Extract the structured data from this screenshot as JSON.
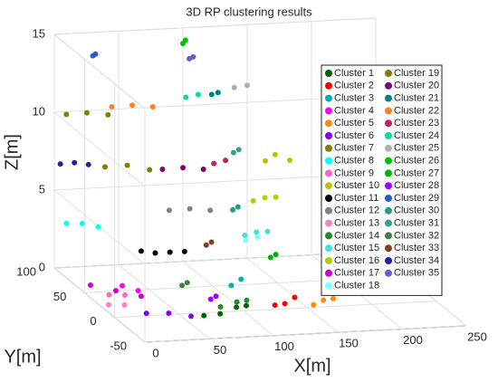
{
  "chart_data": {
    "type": "scatter3d",
    "title": "3D RP clustering results",
    "xlabel": "X[m]",
    "ylabel": "Y[m]",
    "zlabel": "Z[m]",
    "xlim": [
      0,
      250
    ],
    "ylim": [
      -50,
      100
    ],
    "zlim": [
      0,
      15
    ],
    "xticks": [
      0,
      50,
      100,
      150,
      200,
      250
    ],
    "yticks": [
      -50,
      0,
      50,
      100
    ],
    "zticks": [
      0,
      5,
      10,
      15
    ],
    "grid": true,
    "legend": "upper right",
    "series": [
      {
        "name": "Cluster 1",
        "color": "#006400",
        "points": [
          [
            60,
            -20,
            0.5
          ],
          [
            75,
            -15,
            0.4
          ],
          [
            90,
            -10,
            0.6
          ],
          [
            100,
            -5,
            0.5
          ]
        ]
      },
      {
        "name": "Cluster 2",
        "color": "#ff0000",
        "points": [
          [
            120,
            -10,
            0.6
          ],
          [
            130,
            -5,
            0.5
          ],
          [
            140,
            0,
            0.7
          ]
        ]
      },
      {
        "name": "Cluster 3",
        "color": "#00b0b0",
        "points": [
          [
            100,
            20,
            1.0
          ],
          [
            110,
            25,
            1.2
          ]
        ]
      },
      {
        "name": "Cluster 4",
        "color": "#ff00ff",
        "points": [
          [
            20,
            30,
            1.0
          ],
          [
            30,
            25,
            0.8
          ]
        ]
      },
      {
        "name": "Cluster 5",
        "color": "#ff8c00",
        "points": [
          [
            150,
            -10,
            0.5
          ],
          [
            160,
            -5,
            0.6
          ],
          [
            170,
            0,
            0.5
          ]
        ]
      },
      {
        "name": "Cluster 6",
        "color": "#8000ff",
        "points": [
          [
            20,
            -10,
            0.5
          ],
          [
            35,
            -15,
            0.6
          ],
          [
            50,
            -20,
            0.5
          ]
        ]
      },
      {
        "name": "Cluster 7",
        "color": "#808000",
        "points": [
          [
            30,
            80,
            7.0
          ],
          [
            45,
            75,
            7.2
          ],
          [
            60,
            70,
            7.0
          ]
        ]
      },
      {
        "name": "Cluster 8",
        "color": "#00ffff",
        "points": [
          [
            0,
            80,
            3.5
          ],
          [
            10,
            75,
            3.6
          ],
          [
            20,
            70,
            3.5
          ]
        ]
      },
      {
        "name": "Cluster 9",
        "color": "#ff66cc",
        "points": [
          [
            5,
            20,
            0.8
          ],
          [
            15,
            15,
            0.9
          ]
        ]
      },
      {
        "name": "Cluster 10",
        "color": "#c0c000",
        "points": [
          [
            150,
            70,
            7.2
          ],
          [
            160,
            75,
            7.4
          ],
          [
            170,
            72,
            7.1
          ]
        ]
      },
      {
        "name": "Cluster 11",
        "color": "#000000",
        "points": [
          [
            30,
            20,
            3.5
          ],
          [
            40,
            18,
            3.4
          ],
          [
            50,
            15,
            3.5
          ],
          [
            60,
            12,
            3.6
          ]
        ]
      },
      {
        "name": "Cluster 12",
        "color": "#808080",
        "points": [
          [
            80,
            80,
            4.0
          ],
          [
            95,
            78,
            4.1
          ],
          [
            110,
            76,
            4.0
          ]
        ]
      },
      {
        "name": "Cluster 13",
        "color": "#ff80c0",
        "points": [
          [
            0,
            10,
            0.5
          ],
          [
            10,
            5,
            0.6
          ]
        ]
      },
      {
        "name": "Cluster 14",
        "color": "#228b22",
        "points": [
          [
            80,
            -5,
            0.5
          ],
          [
            95,
            0,
            0.6
          ],
          [
            105,
            5,
            0.5
          ]
        ]
      },
      {
        "name": "Cluster 15",
        "color": "#40e0e0",
        "points": [
          [
            120,
            40,
            3.5
          ],
          [
            130,
            42,
            3.6
          ],
          [
            140,
            45,
            3.5
          ]
        ]
      },
      {
        "name": "Cluster 16",
        "color": "#b0d000",
        "points": [
          [
            150,
            90,
            4.0
          ],
          [
            160,
            92,
            4.1
          ],
          [
            170,
            95,
            4.0
          ]
        ]
      },
      {
        "name": "Cluster 17",
        "color": "#d000d0",
        "points": [
          [
            0,
            40,
            0.8
          ],
          [
            15,
            30,
            0.7
          ],
          [
            30,
            20,
            0.6
          ]
        ]
      },
      {
        "name": "Cluster 18",
        "color": "#80ffff",
        "points": [
          [
            130,
            60,
            2.5
          ],
          [
            140,
            62,
            2.6
          ]
        ]
      },
      {
        "name": "Cluster 19",
        "color": "#808000",
        "points": [
          [
            0,
            80,
            10.5
          ],
          [
            15,
            78,
            10.6
          ],
          [
            30,
            75,
            10.5
          ]
        ]
      },
      {
        "name": "Cluster 20",
        "color": "#800080",
        "points": [
          [
            70,
            70,
            7.0
          ],
          [
            85,
            68,
            7.1
          ],
          [
            100,
            66,
            7.0
          ]
        ]
      },
      {
        "name": "Cluster 21",
        "color": "#008080",
        "points": [
          [
            120,
            95,
            10.8
          ],
          [
            125,
            95,
            10.9
          ]
        ]
      },
      {
        "name": "Cluster 22",
        "color": "#ff8020",
        "points": [
          [
            40,
            90,
            10.5
          ],
          [
            55,
            88,
            10.6
          ],
          [
            70,
            86,
            10.5
          ]
        ]
      },
      {
        "name": "Cluster 23",
        "color": "#c02060",
        "points": [
          [
            110,
            70,
            7.2
          ],
          [
            120,
            72,
            7.3
          ]
        ]
      },
      {
        "name": "Cluster 24",
        "color": "#00e0a0",
        "points": [
          [
            100,
            95,
            10.7
          ],
          [
            110,
            96,
            10.8
          ]
        ]
      },
      {
        "name": "Cluster 25",
        "color": "#b0b0b0",
        "points": [
          [
            140,
            100,
            11.0
          ],
          [
            150,
            100,
            11.1
          ]
        ]
      },
      {
        "name": "Cluster 26",
        "color": "#00c000",
        "points": [
          [
            100,
            100,
            14.0
          ],
          [
            102,
            100,
            14.2
          ]
        ]
      },
      {
        "name": "Cluster 27",
        "color": "#00b000",
        "points": [
          [
            140,
            40,
            2.0
          ],
          [
            145,
            42,
            2.1
          ]
        ]
      },
      {
        "name": "Cluster 28",
        "color": "#a000ff",
        "points": [
          [
            70,
            -10,
            1.2
          ],
          [
            75,
            -8,
            1.3
          ]
        ]
      },
      {
        "name": "Cluster 29",
        "color": "#2060c0",
        "points": [
          [
            30,
            100,
            13.5
          ],
          [
            32,
            100,
            13.6
          ]
        ]
      },
      {
        "name": "Cluster 30",
        "color": "#20a080",
        "points": [
          [
            120,
            60,
            4.5
          ],
          [
            125,
            62,
            4.6
          ]
        ]
      },
      {
        "name": "Cluster 31",
        "color": "#30a090",
        "points": [
          [
            130,
            80,
            7.5
          ],
          [
            135,
            82,
            7.6
          ]
        ]
      },
      {
        "name": "Cluster 32",
        "color": "#408040",
        "points": [
          [
            50,
            -5,
            2.0
          ],
          [
            55,
            -3,
            2.1
          ]
        ]
      },
      {
        "name": "Cluster 33",
        "color": "#804020",
        "points": [
          [
            90,
            40,
            3.0
          ],
          [
            95,
            42,
            3.1
          ]
        ]
      },
      {
        "name": "Cluster 34",
        "color": "#2020a0",
        "points": [
          [
            0,
            90,
            7.0
          ],
          [
            10,
            88,
            7.1
          ],
          [
            20,
            86,
            7.0
          ]
        ]
      },
      {
        "name": "Cluster 35",
        "color": "#6060d0",
        "points": [
          [
            105,
            100,
            13.0
          ],
          [
            108,
            100,
            13.1
          ]
        ]
      }
    ]
  }
}
